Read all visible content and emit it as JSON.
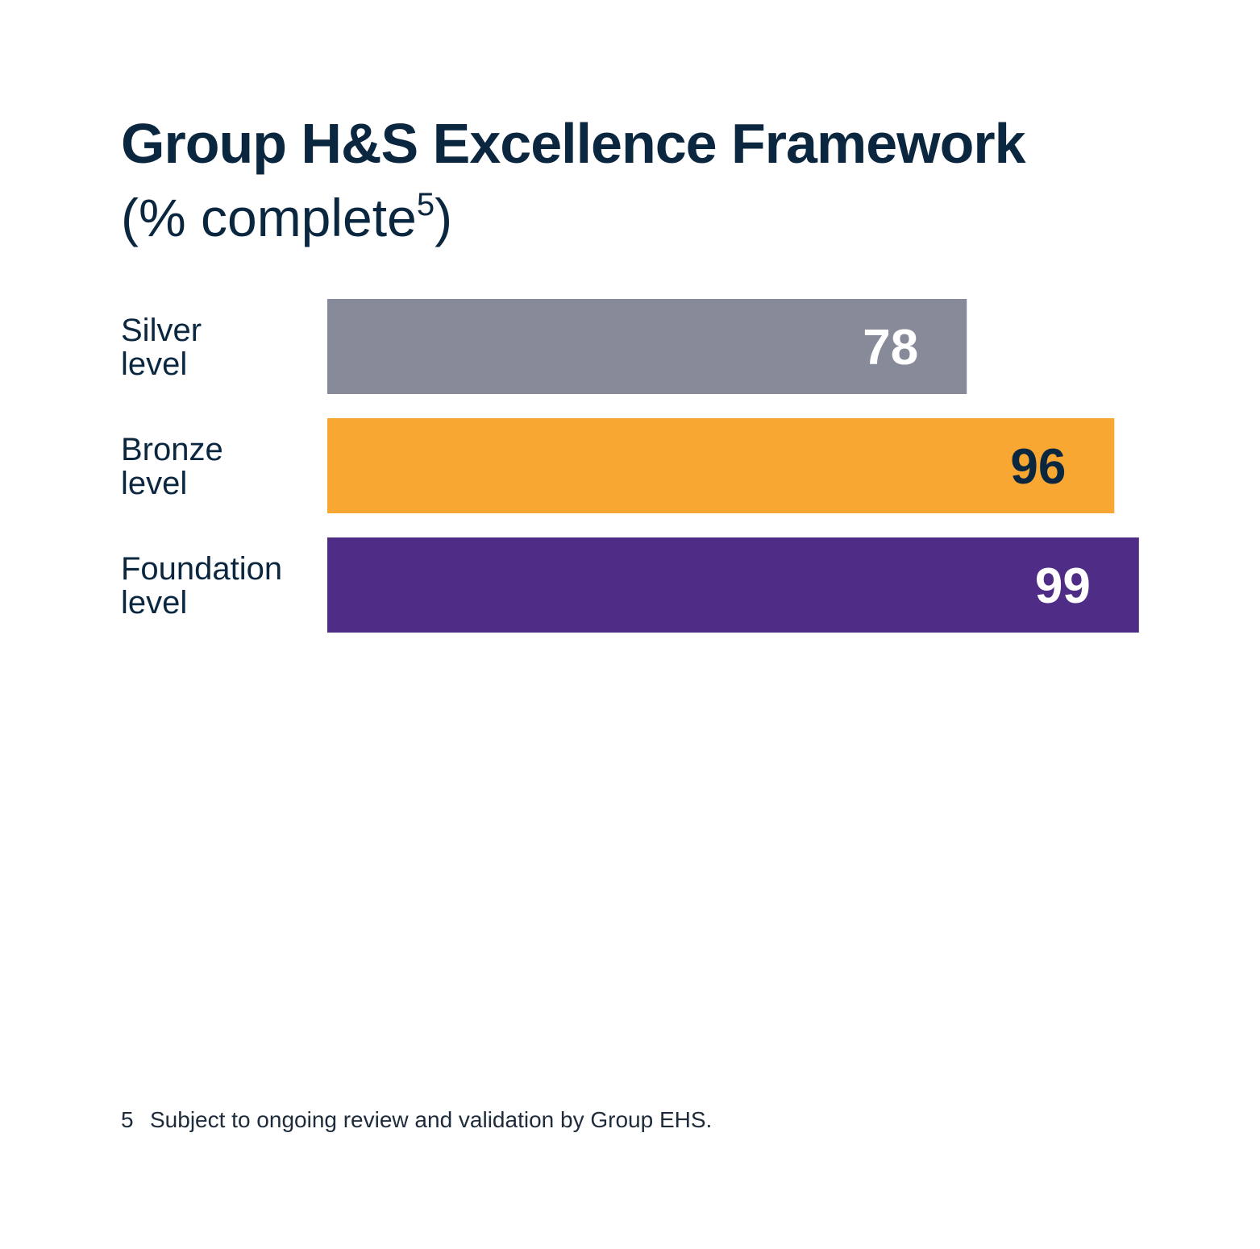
{
  "chart_data": {
    "type": "bar",
    "orientation": "horizontal",
    "title": "Group H&S Excellence Framework",
    "subtitle": "(% complete",
    "subtitle_footnote_marker": "5",
    "subtitle_close": ")",
    "categories": [
      [
        "Silver",
        "level"
      ],
      [
        "Bronze",
        "level"
      ],
      [
        "Foundation",
        "level"
      ]
    ],
    "values": [
      78,
      96,
      99
    ],
    "bar_colors": [
      "#878a99",
      "#f8a733",
      "#4f2d87"
    ],
    "label_colors": [
      "#ffffff",
      "#0b2740",
      "#ffffff"
    ],
    "data_labels": [
      "78",
      "96",
      "99"
    ],
    "xlim": [
      0,
      100
    ],
    "grid": false,
    "legend": "none"
  },
  "footnote": {
    "number": "5",
    "text": "Subject to ongoing review and validation by Group EHS."
  }
}
